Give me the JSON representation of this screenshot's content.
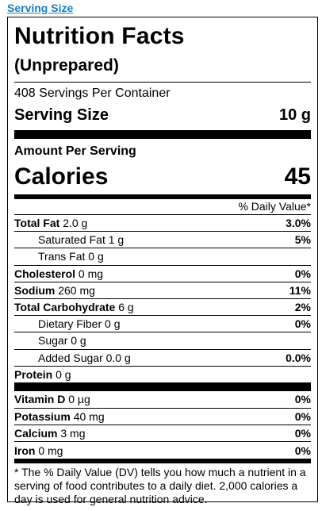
{
  "top_link": "Serving Size",
  "label": {
    "title": "Nutrition Facts",
    "subtitle": "(Unprepared)",
    "servings_per_container": "408 Servings Per Container",
    "serving_size_label": "Serving Size",
    "serving_size_value": "10 g",
    "amount_per_serving": "Amount Per Serving",
    "calories_label": "Calories",
    "calories_value": "45",
    "dv_header": "% Daily Value*",
    "rows": [
      {
        "name": "Total Fat",
        "amount": "2.0 g",
        "pct": "3.0%",
        "bold": true,
        "indent": false
      },
      {
        "name": "Saturated Fat",
        "amount": "1 g",
        "pct": "5%",
        "bold": false,
        "indent": true
      },
      {
        "name": "Trans Fat",
        "amount": "0 g",
        "pct": "",
        "bold": false,
        "indent": true
      },
      {
        "name": "Cholesterol",
        "amount": "0 mg",
        "pct": "0%",
        "bold": true,
        "indent": false
      },
      {
        "name": "Sodium",
        "amount": "260 mg",
        "pct": "11%",
        "bold": true,
        "indent": false
      },
      {
        "name": "Total Carbohydrate",
        "amount": "6 g",
        "pct": "2%",
        "bold": true,
        "indent": false
      },
      {
        "name": "Dietary Fiber",
        "amount": "0 g",
        "pct": "0%",
        "bold": false,
        "indent": true
      },
      {
        "name": "Sugar",
        "amount": "0 g",
        "pct": "",
        "bold": false,
        "indent": true
      },
      {
        "name": "Added Sugar",
        "amount": "0.0 g",
        "pct": "0.0%",
        "bold": false,
        "indent": true
      },
      {
        "name": "Protein",
        "amount": "0 g",
        "pct": "",
        "bold": true,
        "indent": false
      }
    ],
    "vitamins": [
      {
        "name": "Vitamin D",
        "amount": "0 µg",
        "pct": "0%"
      },
      {
        "name": "Potassium",
        "amount": "40 mg",
        "pct": "0%"
      },
      {
        "name": "Calcium",
        "amount": "3 mg",
        "pct": "0%"
      },
      {
        "name": "Iron",
        "amount": "0 mg",
        "pct": "0%"
      }
    ],
    "footnote": "* The % Daily Value (DV) tells you how much a nutrient in a serving of food contributes to a daily diet. 2,000 calories a day is used for general nutrition advice."
  }
}
